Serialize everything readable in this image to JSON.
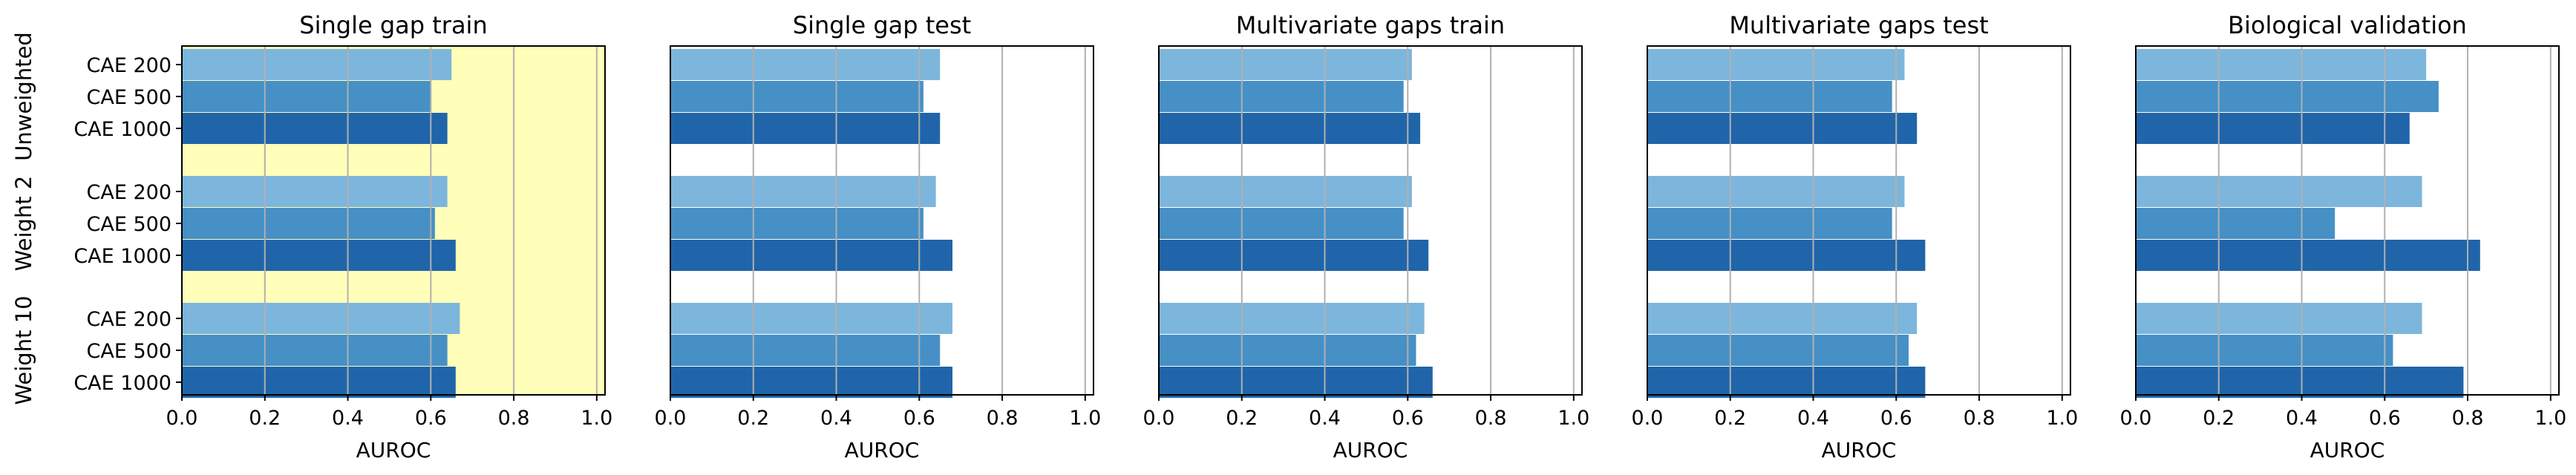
{
  "chart_data": {
    "type": "bar",
    "orientation": "horizontal",
    "panels": [
      {
        "title": "Single gap train",
        "highlight": true
      },
      {
        "title": "Single gap test",
        "highlight": false
      },
      {
        "title": "Multivariate gaps train",
        "highlight": false
      },
      {
        "title": "Multivariate gaps test",
        "highlight": false
      },
      {
        "title": "Biological validation",
        "highlight": false
      }
    ],
    "groups": [
      "Unweighted",
      "Weight 2",
      "Weight 10"
    ],
    "models": [
      "CAE 200",
      "CAE 500",
      "CAE 1000"
    ],
    "colors": {
      "CAE 200": "#7db6dc",
      "CAE 500": "#4690c6",
      "CAE 1000": "#2065a9",
      "highlight_background": "#ffffb9",
      "grid": "#b0b0b0"
    },
    "values": [
      [
        [
          0.65,
          0.6,
          0.64
        ],
        [
          0.64,
          0.61,
          0.66
        ],
        [
          0.67,
          0.64,
          0.66
        ]
      ],
      [
        [
          0.65,
          0.61,
          0.65
        ],
        [
          0.64,
          0.61,
          0.68
        ],
        [
          0.68,
          0.65,
          0.68
        ]
      ],
      [
        [
          0.61,
          0.59,
          0.63
        ],
        [
          0.61,
          0.59,
          0.65
        ],
        [
          0.64,
          0.62,
          0.66
        ]
      ],
      [
        [
          0.62,
          0.59,
          0.65
        ],
        [
          0.62,
          0.59,
          0.67
        ],
        [
          0.65,
          0.63,
          0.67
        ]
      ],
      [
        [
          0.7,
          0.73,
          0.66
        ],
        [
          0.69,
          0.48,
          0.83
        ],
        [
          0.69,
          0.62,
          0.79
        ]
      ]
    ],
    "xlabel": "AUROC",
    "xlim": [
      0,
      1.02
    ],
    "xticks": [
      "0.0",
      "0.2",
      "0.4",
      "0.6",
      "0.8",
      "1.0"
    ],
    "grid": "vertical"
  }
}
